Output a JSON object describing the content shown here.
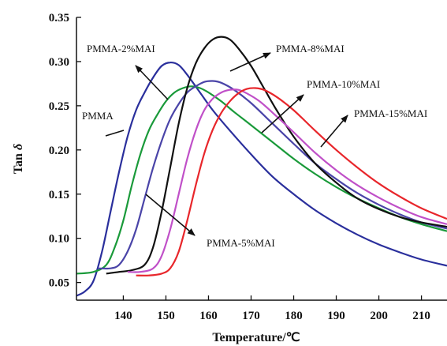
{
  "chart_data": {
    "type": "line",
    "title": "",
    "xlabel": "Temperature/℃",
    "ylabel_main": "Tan ",
    "ylabel_symbol": "δ",
    "xlim": [
      129,
      216
    ],
    "ylim": [
      0.03,
      0.35
    ],
    "xticks": [
      140,
      150,
      160,
      170,
      180,
      190,
      200,
      210
    ],
    "yticks": [
      0.05,
      0.1,
      0.15,
      0.2,
      0.25,
      0.3,
      0.35
    ],
    "ytick_labels": [
      "0.05",
      "0.10",
      "0.15",
      "0.20",
      "0.25",
      "0.30",
      "0.35"
    ],
    "grid": false,
    "legend": "none (series labelled by arrows)",
    "series": [
      {
        "name": "PMMA",
        "color": "#2a2f9c",
        "points": [
          [
            129,
            0.035
          ],
          [
            131,
            0.04
          ],
          [
            133,
            0.052
          ],
          [
            135,
            0.085
          ],
          [
            137,
            0.13
          ],
          [
            139,
            0.175
          ],
          [
            141,
            0.215
          ],
          [
            143,
            0.245
          ],
          [
            145,
            0.265
          ],
          [
            147,
            0.282
          ],
          [
            149,
            0.295
          ],
          [
            151,
            0.299
          ],
          [
            153,
            0.296
          ],
          [
            155,
            0.285
          ],
          [
            158,
            0.265
          ],
          [
            161,
            0.245
          ],
          [
            165,
            0.222
          ],
          [
            170,
            0.195
          ],
          [
            175,
            0.17
          ],
          [
            180,
            0.15
          ],
          [
            185,
            0.132
          ],
          [
            190,
            0.117
          ],
          [
            195,
            0.104
          ],
          [
            200,
            0.093
          ],
          [
            205,
            0.084
          ],
          [
            210,
            0.076
          ],
          [
            216,
            0.069
          ]
        ]
      },
      {
        "name": "PMMA-2%MAI",
        "color": "#1a9a3a",
        "points": [
          [
            129,
            0.06
          ],
          [
            133,
            0.062
          ],
          [
            136,
            0.07
          ],
          [
            138,
            0.09
          ],
          [
            140,
            0.12
          ],
          [
            142,
            0.16
          ],
          [
            144,
            0.195
          ],
          [
            146,
            0.222
          ],
          [
            148,
            0.24
          ],
          [
            150,
            0.255
          ],
          [
            152,
            0.265
          ],
          [
            154,
            0.27
          ],
          [
            156,
            0.272
          ],
          [
            158,
            0.27
          ],
          [
            160,
            0.265
          ],
          [
            163,
            0.255
          ],
          [
            166,
            0.243
          ],
          [
            170,
            0.228
          ],
          [
            175,
            0.209
          ],
          [
            180,
            0.19
          ],
          [
            185,
            0.173
          ],
          [
            190,
            0.158
          ],
          [
            195,
            0.145
          ],
          [
            200,
            0.134
          ],
          [
            205,
            0.124
          ],
          [
            210,
            0.116
          ],
          [
            216,
            0.108
          ]
        ]
      },
      {
        "name": "PMMA-5%MAI",
        "color": "#4a44a8",
        "points": [
          [
            134,
            0.066
          ],
          [
            137,
            0.066
          ],
          [
            139,
            0.07
          ],
          [
            141,
            0.085
          ],
          [
            143,
            0.11
          ],
          [
            145,
            0.145
          ],
          [
            147,
            0.18
          ],
          [
            149,
            0.21
          ],
          [
            151,
            0.235
          ],
          [
            153,
            0.252
          ],
          [
            155,
            0.265
          ],
          [
            157,
            0.272
          ],
          [
            159,
            0.277
          ],
          [
            161,
            0.278
          ],
          [
            163,
            0.276
          ],
          [
            166,
            0.268
          ],
          [
            170,
            0.253
          ],
          [
            175,
            0.23
          ],
          [
            180,
            0.207
          ],
          [
            185,
            0.185
          ],
          [
            190,
            0.167
          ],
          [
            195,
            0.151
          ],
          [
            200,
            0.138
          ],
          [
            205,
            0.127
          ],
          [
            210,
            0.118
          ],
          [
            216,
            0.111
          ]
        ]
      },
      {
        "name": "PMMA-8%MAI",
        "color": "#111111",
        "points": [
          [
            136,
            0.06
          ],
          [
            139,
            0.062
          ],
          [
            142,
            0.064
          ],
          [
            145,
            0.07
          ],
          [
            147,
            0.09
          ],
          [
            149,
            0.13
          ],
          [
            151,
            0.18
          ],
          [
            153,
            0.23
          ],
          [
            155,
            0.27
          ],
          [
            157,
            0.298
          ],
          [
            159,
            0.315
          ],
          [
            161,
            0.325
          ],
          [
            163,
            0.328
          ],
          [
            165,
            0.325
          ],
          [
            167,
            0.315
          ],
          [
            170,
            0.295
          ],
          [
            173,
            0.27
          ],
          [
            176,
            0.245
          ],
          [
            180,
            0.215
          ],
          [
            185,
            0.185
          ],
          [
            190,
            0.163
          ],
          [
            195,
            0.145
          ],
          [
            200,
            0.133
          ],
          [
            205,
            0.124
          ],
          [
            210,
            0.118
          ],
          [
            216,
            0.113
          ]
        ]
      },
      {
        "name": "PMMA-10%MAI",
        "color": "#c050c8",
        "points": [
          [
            141,
            0.062
          ],
          [
            144,
            0.062
          ],
          [
            147,
            0.066
          ],
          [
            149,
            0.08
          ],
          [
            151,
            0.11
          ],
          [
            153,
            0.15
          ],
          [
            155,
            0.19
          ],
          [
            157,
            0.222
          ],
          [
            159,
            0.245
          ],
          [
            161,
            0.258
          ],
          [
            163,
            0.265
          ],
          [
            165,
            0.268
          ],
          [
            167,
            0.268
          ],
          [
            169,
            0.264
          ],
          [
            172,
            0.255
          ],
          [
            176,
            0.238
          ],
          [
            180,
            0.22
          ],
          [
            185,
            0.197
          ],
          [
            190,
            0.177
          ],
          [
            195,
            0.16
          ],
          [
            200,
            0.146
          ],
          [
            205,
            0.134
          ],
          [
            210,
            0.124
          ],
          [
            216,
            0.116
          ]
        ]
      },
      {
        "name": "PMMA-15%MAI",
        "color": "#e8262b",
        "points": [
          [
            143,
            0.058
          ],
          [
            146,
            0.058
          ],
          [
            149,
            0.06
          ],
          [
            151,
            0.066
          ],
          [
            153,
            0.085
          ],
          [
            155,
            0.12
          ],
          [
            157,
            0.16
          ],
          [
            159,
            0.196
          ],
          [
            161,
            0.223
          ],
          [
            163,
            0.242
          ],
          [
            165,
            0.255
          ],
          [
            167,
            0.264
          ],
          [
            169,
            0.269
          ],
          [
            171,
            0.27
          ],
          [
            173,
            0.268
          ],
          [
            176,
            0.26
          ],
          [
            180,
            0.245
          ],
          [
            185,
            0.222
          ],
          [
            190,
            0.2
          ],
          [
            195,
            0.18
          ],
          [
            200,
            0.162
          ],
          [
            205,
            0.147
          ],
          [
            210,
            0.134
          ],
          [
            216,
            0.122
          ]
        ]
      }
    ],
    "annotations": [
      {
        "text": "PMMA-2%MAI",
        "series": "PMMA-2%MAI"
      },
      {
        "text": "PMMA-8%MAI",
        "series": "PMMA-8%MAI"
      },
      {
        "text": "PMMA-10%MAI",
        "series": "PMMA-10%MAI"
      },
      {
        "text": "PMMA",
        "series": "PMMA"
      },
      {
        "text": "PMMA-15%MAI",
        "series": "PMMA-15%MAI"
      },
      {
        "text": "PMMA-5%MAI",
        "series": "PMMA-5%MAI"
      }
    ]
  }
}
